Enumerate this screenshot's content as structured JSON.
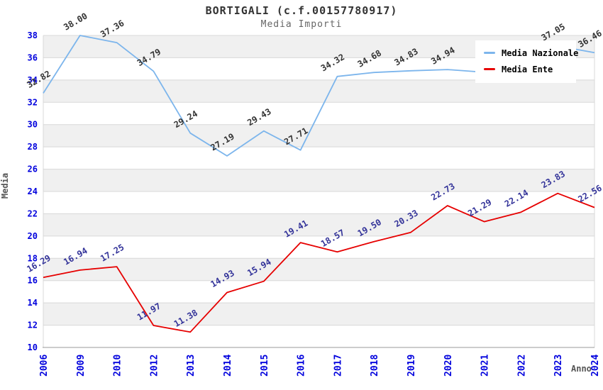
{
  "header": {
    "title": "BORTIGALI (c.f.00157780917)",
    "subtitle": "Media Importi"
  },
  "chart_data": {
    "type": "line",
    "title": "BORTIGALI (c.f.00157780917)",
    "subtitle": "Media Importi",
    "xlabel": "Anno",
    "ylabel": "Media",
    "ylim": [
      10,
      38
    ],
    "ytick_step": 2,
    "grid": true,
    "legend_position": "top-right",
    "band_color": "#f0f0f0",
    "grid_color": "#d8d8d8",
    "axis_line_color": "#999999",
    "tick_label_color": "#0000dd",
    "categories": [
      "2006",
      "2009",
      "2010",
      "2012",
      "2013",
      "2014",
      "2015",
      "2016",
      "2017",
      "2018",
      "2019",
      "2020",
      "2021",
      "2022",
      "2023",
      "2024"
    ],
    "series": [
      {
        "name": "Media Nazionale",
        "color": "#7cb5ec",
        "label_color": "#333333",
        "values": [
          32.82,
          38.0,
          37.36,
          34.79,
          29.24,
          27.19,
          29.43,
          27.71,
          34.32,
          34.68,
          34.83,
          34.94,
          34.7,
          35.8,
          37.05,
          36.46
        ],
        "labels": [
          "32.82",
          "38.00",
          "37.36",
          "34.79",
          "29.24",
          "27.19",
          "29.43",
          "27.71",
          "34.32",
          "34.68",
          "34.83",
          "34.94",
          null,
          null,
          "37.05",
          "36.46"
        ]
      },
      {
        "name": "Media Ente",
        "color": "#e60000",
        "label_color": "#333399",
        "values": [
          16.29,
          16.94,
          17.25,
          11.97,
          11.38,
          14.93,
          15.94,
          19.41,
          18.57,
          19.5,
          20.33,
          22.73,
          21.29,
          22.14,
          23.83,
          22.56
        ],
        "labels": [
          "16.29",
          "16.94",
          "17.25",
          "11.97",
          "11.38",
          "14.93",
          "15.94",
          "19.41",
          "18.57",
          "19.50",
          "20.33",
          "22.73",
          "21.29",
          "22.14",
          "23.83",
          "22.56"
        ]
      }
    ]
  },
  "legend": {
    "items": [
      {
        "label": "Media Nazionale",
        "color": "#7cb5ec"
      },
      {
        "label": "Media Ente",
        "color": "#e60000"
      }
    ]
  }
}
